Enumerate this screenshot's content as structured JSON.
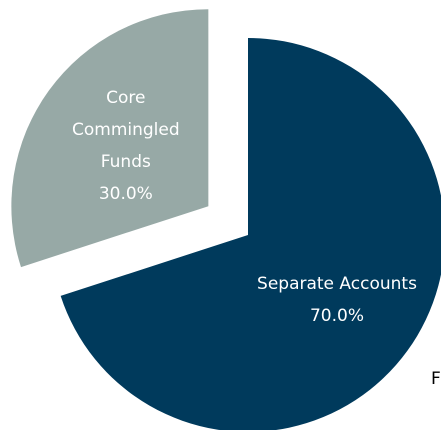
{
  "chart_data": {
    "type": "pie",
    "categories": [
      "Separate Accounts",
      "Core Commingled Funds"
    ],
    "values": [
      70,
      30
    ],
    "value_labels": [
      "70.0%",
      "30.0%"
    ],
    "colors": [
      "#003a5c",
      "#97a9a6"
    ],
    "exploded": [
      false,
      true
    ],
    "start_angle": 0,
    "direction": "clockwise",
    "annotation": "F"
  }
}
